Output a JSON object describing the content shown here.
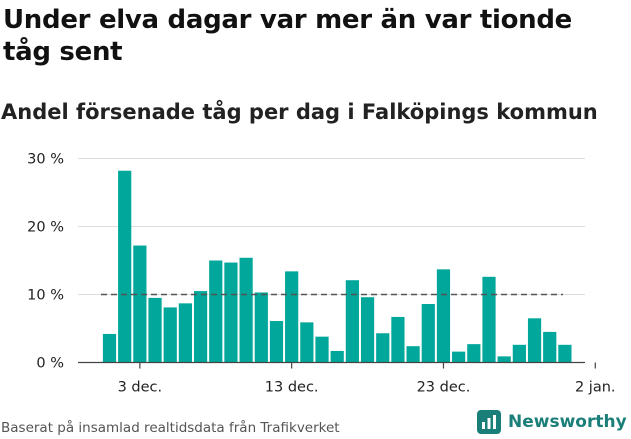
{
  "header": {
    "title": "Under elva dagar var mer än var tionde tåg sent",
    "subtitle": "Andel försenade tåg per dag i Falköpings kommun"
  },
  "footer": {
    "source": "Baserat på insamlad realtidsdata från Trafikverket",
    "logo_text": "Newsworthy"
  },
  "colors": {
    "bar": "#00a79a",
    "reference_line": "#555555",
    "grid": "#dddddd",
    "brand": "#1a7f78"
  },
  "chart_data": {
    "type": "bar",
    "title": "Under elva dagar var mer än var tionde tåg sent",
    "subtitle": "Andel försenade tåg per dag i Falköpings kommun",
    "x_start_day_label": "1 dec.",
    "categories": [
      "1 dec.",
      "2 dec.",
      "3 dec.",
      "4 dec.",
      "5 dec.",
      "6 dec.",
      "7 dec.",
      "8 dec.",
      "9 dec.",
      "10 dec.",
      "11 dec.",
      "12 dec.",
      "13 dec.",
      "14 dec.",
      "15 dec.",
      "16 dec.",
      "17 dec.",
      "18 dec.",
      "19 dec.",
      "20 dec.",
      "21 dec.",
      "22 dec.",
      "23 dec.",
      "24 dec.",
      "25 dec.",
      "26 dec.",
      "27 dec.",
      "28 dec.",
      "29 dec.",
      "30 dec.",
      "31 dec."
    ],
    "values": [
      4.2,
      28.2,
      17.2,
      9.5,
      8.1,
      8.7,
      10.5,
      15.0,
      14.7,
      15.4,
      10.3,
      6.1,
      13.4,
      5.9,
      3.8,
      1.7,
      12.1,
      9.6,
      4.3,
      6.7,
      2.4,
      8.6,
      13.7,
      1.6,
      2.7,
      12.6,
      0.9,
      2.6,
      6.5,
      4.5,
      2.6
    ],
    "reference_line": 10,
    "y_ticks": [
      "0 %",
      "10 %",
      "20 %",
      "30 %"
    ],
    "y_tick_values": [
      0,
      10,
      20,
      30
    ],
    "ylim": [
      0,
      30
    ],
    "x_tick_labels": [
      "3 dec.",
      "13 dec.",
      "23 dec.",
      "2 jan."
    ],
    "x_tick_day_index": [
      2,
      12,
      22,
      32
    ],
    "grid": true
  }
}
